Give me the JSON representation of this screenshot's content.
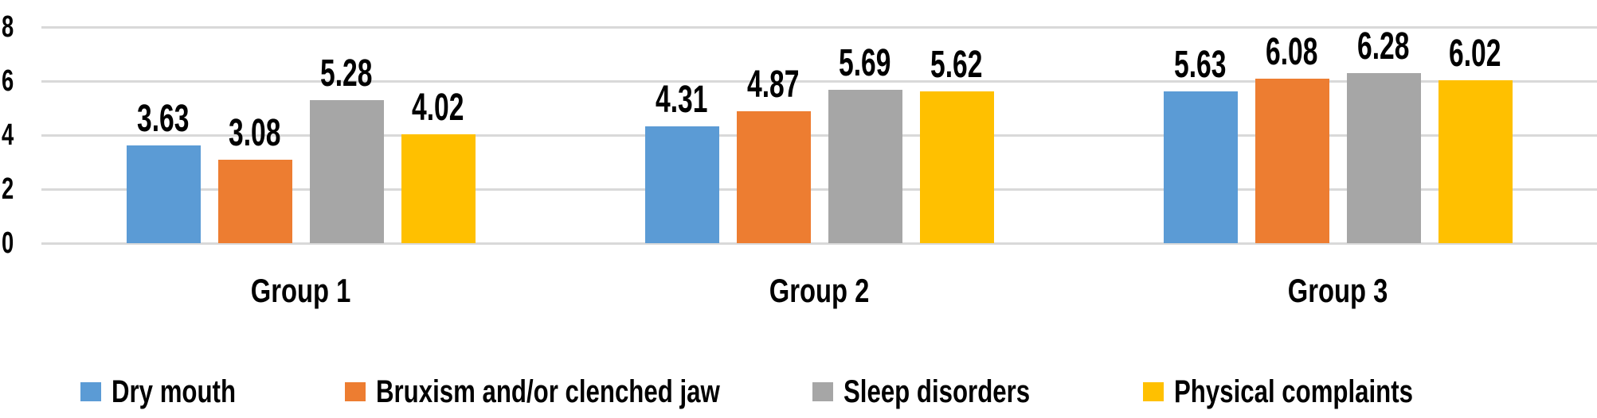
{
  "chart_data": {
    "type": "bar",
    "title": "",
    "xlabel": "",
    "ylabel": "",
    "categories": [
      "Group 1",
      "Group 2",
      "Group 3"
    ],
    "series": [
      {
        "name": "Dry mouth",
        "color": "#5B9BD5",
        "values": [
          3.63,
          4.31,
          5.63
        ]
      },
      {
        "name": "Bruxism and/or clenched jaw",
        "color": "#ED7D31",
        "values": [
          3.08,
          4.87,
          6.08
        ]
      },
      {
        "name": "Sleep disorders",
        "color": "#A6A6A6",
        "values": [
          5.28,
          5.69,
          6.28
        ]
      },
      {
        "name": "Physical complaints",
        "color": "#FFC000",
        "values": [
          4.02,
          5.62,
          6.02
        ]
      }
    ],
    "ylim": [
      0,
      8
    ],
    "yticks": [
      0,
      2,
      4,
      6,
      8
    ],
    "grid": true,
    "gridline_color": "#D9D9D9",
    "text_color": "#000000",
    "background_color": "#FFFFFF",
    "data_labels": true,
    "value_format_decimals": 2,
    "legend_position": "bottom"
  }
}
